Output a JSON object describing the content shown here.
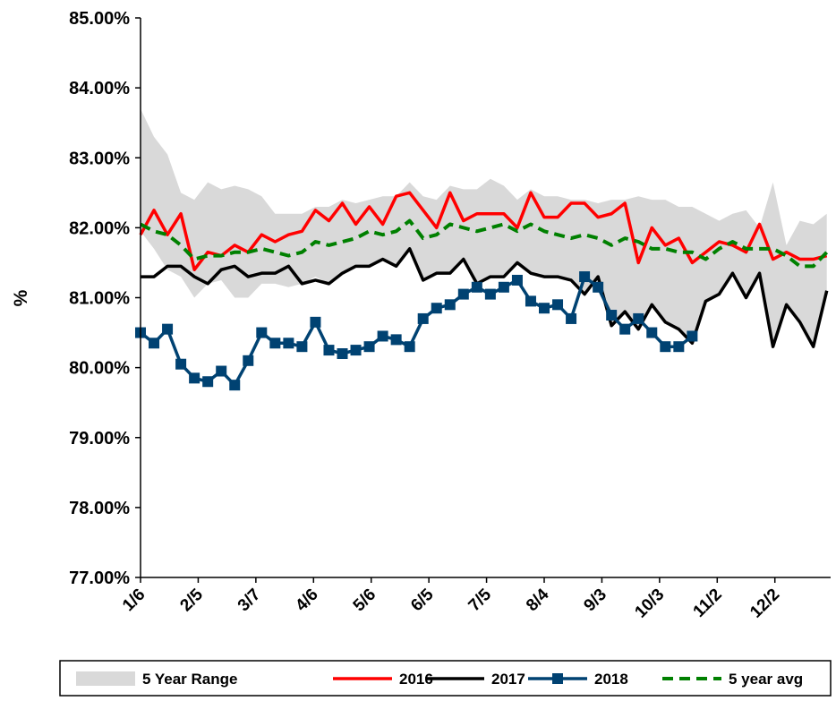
{
  "chart_data": {
    "type": "line",
    "ylabel": "%",
    "x": [
      0,
      7,
      14,
      21,
      28,
      35,
      42,
      49,
      56,
      63,
      70,
      77,
      84,
      91,
      98,
      105,
      112,
      119,
      126,
      133,
      140,
      147,
      154,
      161,
      168,
      175,
      182,
      189,
      196,
      203,
      210,
      217,
      224,
      231,
      238,
      245,
      252,
      259,
      266,
      273,
      280,
      287,
      294,
      301,
      308,
      315,
      322,
      329,
      336,
      343,
      350,
      357
    ],
    "xlim": [
      0,
      359
    ],
    "xticks": [
      {
        "value": 0,
        "label": "1/6"
      },
      {
        "value": 30,
        "label": "2/5"
      },
      {
        "value": 60,
        "label": "3/7"
      },
      {
        "value": 90,
        "label": "4/6"
      },
      {
        "value": 120,
        "label": "5/6"
      },
      {
        "value": 150,
        "label": "6/5"
      },
      {
        "value": 180,
        "label": "7/5"
      },
      {
        "value": 210,
        "label": "8/4"
      },
      {
        "value": 240,
        "label": "9/3"
      },
      {
        "value": 270,
        "label": "10/3"
      },
      {
        "value": 300,
        "label": "11/2"
      },
      {
        "value": 330,
        "label": "12/2"
      }
    ],
    "ylim": [
      77,
      85
    ],
    "yticks": [
      {
        "value": 77,
        "label": "77.00%"
      },
      {
        "value": 78,
        "label": "78.00%"
      },
      {
        "value": 79,
        "label": "79.00%"
      },
      {
        "value": 80,
        "label": "80.00%"
      },
      {
        "value": 81,
        "label": "81.00%"
      },
      {
        "value": 82,
        "label": "82.00%"
      },
      {
        "value": 83,
        "label": "83.00%"
      },
      {
        "value": 84,
        "label": "84.00%"
      },
      {
        "value": 85,
        "label": "85.00%"
      }
    ],
    "grid": false,
    "legend": "bottom",
    "series": [
      {
        "name": "5 Year Range",
        "kind": "range",
        "color": "#d9d9d9",
        "low": [
          81.95,
          81.7,
          81.4,
          81.3,
          81.0,
          81.2,
          81.25,
          81.0,
          81.0,
          81.2,
          81.2,
          81.15,
          81.2,
          81.3,
          81.2,
          81.35,
          81.45,
          81.45,
          81.55,
          81.45,
          81.7,
          81.25,
          81.35,
          81.35,
          81.55,
          81.2,
          81.3,
          81.3,
          81.5,
          81.35,
          81.3,
          81.3,
          81.25,
          81.05,
          81.3,
          80.6,
          80.8,
          80.55,
          80.9,
          80.65,
          80.55,
          80.35,
          80.95,
          81.05,
          81.35,
          81.0,
          81.35,
          80.3,
          80.9,
          80.65,
          80.3,
          81.1
        ],
        "high": [
          83.7,
          83.3,
          83.05,
          82.5,
          82.4,
          82.65,
          82.55,
          82.6,
          82.55,
          82.45,
          82.2,
          82.2,
          82.2,
          82.3,
          82.3,
          82.4,
          82.35,
          82.4,
          82.45,
          82.45,
          82.65,
          82.45,
          82.4,
          82.6,
          82.55,
          82.55,
          82.7,
          82.6,
          82.4,
          82.55,
          82.45,
          82.45,
          82.4,
          82.4,
          82.35,
          82.4,
          82.4,
          82.45,
          82.4,
          82.4,
          82.3,
          82.3,
          82.2,
          82.1,
          82.2,
          82.25,
          82.0,
          82.65,
          81.75,
          82.1,
          82.05,
          82.2
        ]
      },
      {
        "name": "2016",
        "color": "#ff0000",
        "linestyle": "solid",
        "values": [
          81.9,
          82.25,
          81.9,
          82.2,
          81.4,
          81.65,
          81.6,
          81.75,
          81.65,
          81.9,
          81.8,
          81.9,
          81.95,
          82.25,
          82.1,
          82.35,
          82.05,
          82.3,
          82.05,
          82.45,
          82.5,
          82.25,
          82.0,
          82.5,
          82.1,
          82.2,
          82.2,
          82.2,
          82.0,
          82.5,
          82.15,
          82.15,
          82.35,
          82.35,
          82.15,
          82.2,
          82.35,
          81.5,
          82.0,
          81.75,
          81.85,
          81.5,
          81.65,
          81.8,
          81.75,
          81.65,
          82.05,
          81.55,
          81.65,
          81.55,
          81.55,
          81.6
        ]
      },
      {
        "name": "2017",
        "color": "#000000",
        "linestyle": "solid",
        "values": [
          81.3,
          81.3,
          81.45,
          81.45,
          81.3,
          81.2,
          81.4,
          81.45,
          81.3,
          81.35,
          81.35,
          81.45,
          81.2,
          81.25,
          81.2,
          81.35,
          81.45,
          81.45,
          81.55,
          81.45,
          81.7,
          81.25,
          81.35,
          81.35,
          81.55,
          81.2,
          81.3,
          81.3,
          81.5,
          81.35,
          81.3,
          81.3,
          81.25,
          81.05,
          81.3,
          80.6,
          80.8,
          80.55,
          80.9,
          80.65,
          80.55,
          80.35,
          80.95,
          81.05,
          81.35,
          81.0,
          81.35,
          80.3,
          80.9,
          80.65,
          80.3,
          81.1
        ]
      },
      {
        "name": "2018",
        "color": "#004272",
        "linestyle": "solid",
        "marker": "square",
        "values": [
          80.5,
          80.35,
          80.55,
          80.05,
          79.85,
          79.8,
          79.95,
          79.75,
          80.1,
          80.5,
          80.35,
          80.35,
          80.3,
          80.65,
          80.25,
          80.2,
          80.25,
          80.3,
          80.45,
          80.4,
          80.3,
          80.7,
          80.85,
          80.9,
          81.05,
          81.15,
          81.05,
          81.15,
          81.25,
          80.95,
          80.85,
          80.9,
          80.7,
          81.3,
          81.15,
          80.75,
          80.55,
          80.7,
          80.5,
          80.3,
          80.3,
          80.45,
          null,
          null,
          null,
          null,
          null,
          null,
          null,
          null,
          null,
          null
        ]
      },
      {
        "name": "5 year avg",
        "color": "#008000",
        "linestyle": "dashed",
        "values": [
          82.05,
          81.95,
          81.9,
          81.75,
          81.55,
          81.6,
          81.6,
          81.65,
          81.65,
          81.7,
          81.65,
          81.6,
          81.65,
          81.8,
          81.75,
          81.8,
          81.85,
          81.95,
          81.9,
          81.95,
          82.1,
          81.85,
          81.9,
          82.05,
          82.0,
          81.95,
          82.0,
          82.05,
          81.95,
          82.05,
          81.95,
          81.9,
          81.85,
          81.9,
          81.85,
          81.75,
          81.85,
          81.8,
          81.7,
          81.7,
          81.65,
          81.65,
          81.55,
          81.7,
          81.8,
          81.7,
          81.7,
          81.7,
          81.6,
          81.45,
          81.45,
          81.65
        ]
      }
    ]
  }
}
